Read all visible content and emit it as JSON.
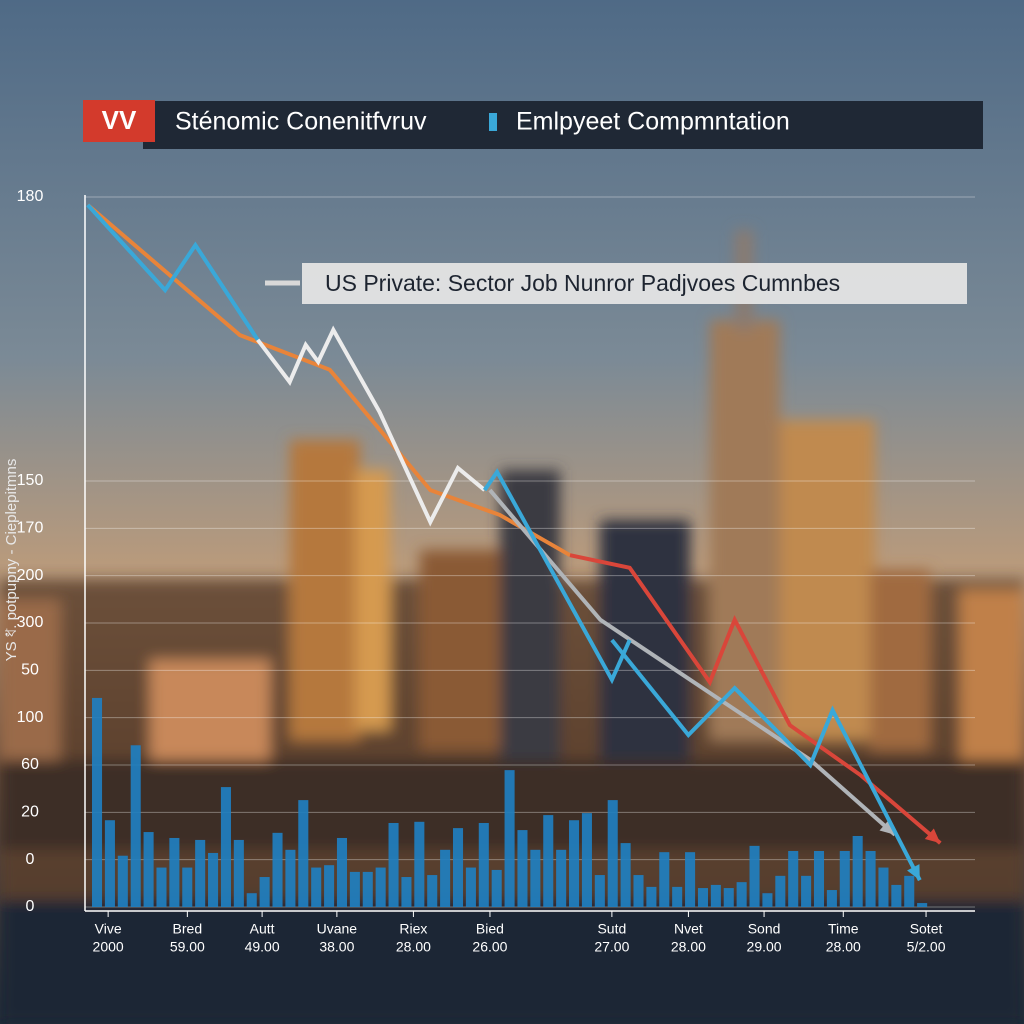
{
  "badge": "VV",
  "chart_data": {
    "type": "line",
    "title": "Sténomic Conenitfvruv",
    "title_2": "Emlpyeet Compmntation",
    "subtitle": "US Private: Sector  Job Nunror  Padjvoes Cumnbes",
    "y_label": "YS ধ. potpupny - Cieplepitmns",
    "ylim": [
      0,
      180
    ],
    "yticks": [
      0,
      {
        "value": 12,
        "label": "0"
      },
      {
        "value": 24,
        "label": "20"
      },
      {
        "value": 36,
        "label": "60"
      },
      {
        "value": 48,
        "label": "100"
      },
      {
        "value": 60,
        "label": "50"
      },
      {
        "value": 72,
        "label": "300"
      },
      {
        "value": 84,
        "label": "200"
      },
      {
        "value": 96,
        "label": "170"
      },
      {
        "value": 108,
        "label": "150"
      },
      180
    ],
    "xlim": [
      0,
      100
    ],
    "xticks": [
      {
        "value": 2.6,
        "label": "Vive"
      },
      {
        "value": 11.5,
        "label": "Bred"
      },
      {
        "value": 19.9,
        "label": "Autt"
      },
      {
        "value": 28.3,
        "label": "Uvane"
      },
      {
        "value": 36.9,
        "label": "Riex"
      },
      {
        "value": 45.5,
        "label": "Bied"
      },
      {
        "value": 59.2,
        "label": "Sutd"
      },
      {
        "value": 67.8,
        "label": "Nvet"
      },
      {
        "value": 76.3,
        "label": "Sond"
      },
      {
        "value": 85.2,
        "label": "Time"
      },
      {
        "value": 94.5,
        "label": "Sotet"
      }
    ],
    "xtick_sublabels": [
      "2000",
      "59.00",
      "49.00",
      "38.00",
      "28.00",
      "26.00",
      "27.00",
      "28.00",
      "29.00",
      "28.00",
      "5/2.00"
    ],
    "grid": true,
    "series": [
      {
        "type": "bar",
        "color": "#1f7fc0",
        "values": [
          53,
          22,
          13,
          41,
          19,
          10,
          17.5,
          10,
          17,
          13.7,
          30.4,
          17,
          3.5,
          7.6,
          18.8,
          14.5,
          27.1,
          10,
          10.6,
          17.5,
          8.9,
          8.9,
          10,
          21.3,
          7.6,
          21.6,
          8.1,
          14.5,
          20,
          10,
          21.3,
          9.4,
          34.7,
          19.5,
          14.5,
          23.3,
          14.5,
          22,
          23.8,
          8.1,
          27.1,
          16.2,
          8.1,
          5.1,
          13.9,
          5.1,
          13.9,
          4.8,
          5.6,
          4.8,
          6.3,
          15.5,
          3.5,
          7.9,
          14.2,
          7.9,
          14.2,
          4.3,
          14.2,
          18,
          14.2,
          10,
          5.6,
          7.9,
          1
        ]
      },
      {
        "type": "line",
        "color": "#e8843a",
        "x": [
          0.3,
          17.4,
          27.5,
          38.8,
          46.6,
          54.5
        ],
        "values": [
          178,
          145,
          136.2,
          105.7,
          99.4,
          89.2
        ]
      },
      {
        "type": "line",
        "color": "#d9463a",
        "arrow": true,
        "x": [
          54.5,
          61.2,
          70.2,
          73,
          79.2,
          87.1,
          96.1
        ],
        "values": [
          89.2,
          86,
          57,
          72.8,
          46.1,
          33.5,
          16.2
        ]
      },
      {
        "type": "line",
        "color": "#b0b4b8",
        "arrow": true,
        "x": [
          45.5,
          57.9,
          81.5,
          91
        ],
        "values": [
          105.7,
          72.8,
          37.3,
          18.3
        ]
      },
      {
        "type": "line",
        "color": "#3aa8d8",
        "x": [
          0.3,
          9,
          12.4,
          19.4
        ],
        "values": [
          178,
          156.4,
          167.8,
          143.8
        ]
      },
      {
        "type": "line",
        "color": "#ececec",
        "x": [
          19.4,
          23,
          24.8,
          26.2,
          27.9,
          33.1,
          38.8,
          41.9,
          44.9
        ],
        "values": [
          143.8,
          133.1,
          142.5,
          138.2,
          146.3,
          125.5,
          97.6,
          111.3,
          105.7
        ]
      },
      {
        "type": "line",
        "color": "#3aa8d8",
        "x": [
          44.9,
          46.3,
          59.2,
          61.2
        ],
        "values": [
          105.7,
          110.3,
          57.6,
          67.7
        ]
      },
      {
        "type": "line",
        "color": "#3aa8d8",
        "arrow": true,
        "x": [
          59.2,
          67.8,
          73,
          81.5,
          84,
          93.8
        ],
        "values": [
          67.7,
          43.6,
          55.5,
          36,
          49.9,
          6.8
        ]
      }
    ]
  }
}
